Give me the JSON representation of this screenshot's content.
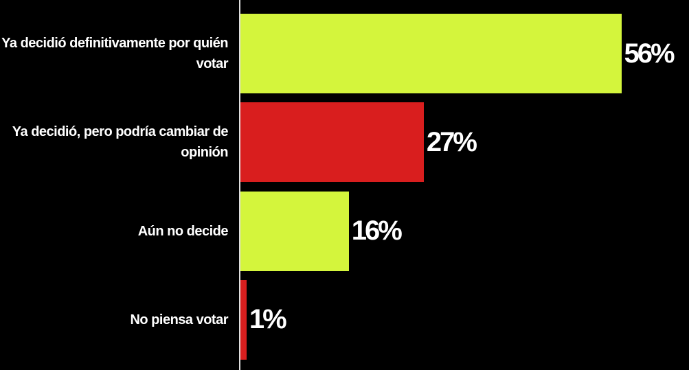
{
  "chart_data": {
    "type": "bar",
    "orientation": "horizontal",
    "categories": [
      "Ya decidió definitivamente por quién votar",
      "Ya decidió, pero podría cambiar de opinión",
      "Aún no decide",
      "No piensa votar"
    ],
    "values": [
      56,
      27,
      16,
      1
    ],
    "value_labels": [
      "56%",
      "27%",
      "16%",
      "1%"
    ],
    "colors": [
      "#d4f53c",
      "#d91e1e",
      "#d4f53c",
      "#d91e1e"
    ]
  }
}
